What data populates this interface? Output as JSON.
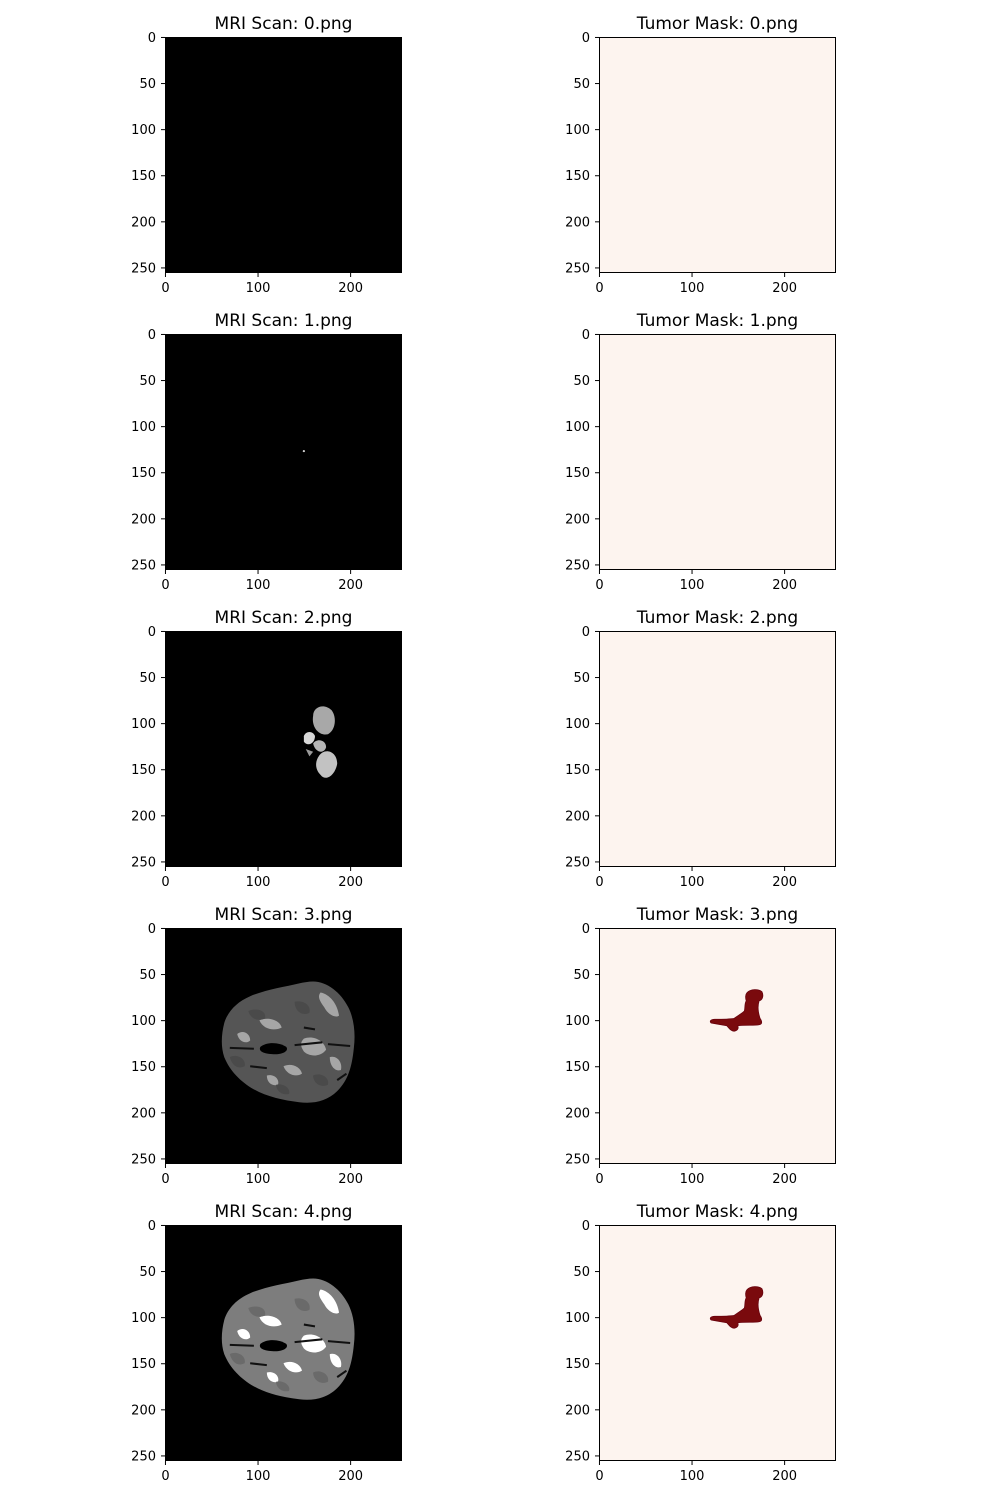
{
  "figure": {
    "background": "#ffffff"
  },
  "colors": {
    "mri_background": "#000000",
    "mask_background": "#fdf4ef",
    "tumor_fill": "#7a0a0d",
    "tumor_outline": "#67000d",
    "tissue_dark": "#555555",
    "tissue_mid": "#7d7d7d",
    "tissue_light": "#a6a6a6",
    "tissue_white": "#ffffff"
  },
  "chart_data": [
    {
      "type": "heatmap",
      "panel": "mri",
      "title": "MRI Scan: 0.png",
      "colormap": "gray",
      "content": "empty",
      "xlim": [
        0,
        255
      ],
      "ylim": [
        255,
        0
      ],
      "xticks": [
        0,
        100,
        200
      ],
      "yticks": [
        0,
        50,
        100,
        150,
        200,
        250
      ]
    },
    {
      "type": "heatmap",
      "panel": "mask",
      "title": "Tumor Mask: 0.png",
      "colormap": "Reds",
      "content": "empty",
      "xlim": [
        0,
        255
      ],
      "ylim": [
        255,
        0
      ],
      "xticks": [
        0,
        100,
        200
      ],
      "yticks": [
        0,
        50,
        100,
        150,
        200,
        250
      ]
    },
    {
      "type": "heatmap",
      "panel": "mri",
      "title": "MRI Scan: 1.png",
      "colormap": "gray",
      "content": "dot",
      "dot_at": [
        150,
        127
      ],
      "xlim": [
        0,
        255
      ],
      "ylim": [
        255,
        0
      ],
      "xticks": [
        0,
        100,
        200
      ],
      "yticks": [
        0,
        50,
        100,
        150,
        200,
        250
      ]
    },
    {
      "type": "heatmap",
      "panel": "mask",
      "title": "Tumor Mask: 1.png",
      "colormap": "Reds",
      "content": "empty",
      "xlim": [
        0,
        255
      ],
      "ylim": [
        255,
        0
      ],
      "xticks": [
        0,
        100,
        200
      ],
      "yticks": [
        0,
        50,
        100,
        150,
        200,
        250
      ]
    },
    {
      "type": "heatmap",
      "panel": "mri",
      "title": "MRI Scan: 2.png",
      "colormap": "gray",
      "content": "blobs",
      "xlim": [
        0,
        255
      ],
      "ylim": [
        255,
        0
      ],
      "xticks": [
        0,
        100,
        200
      ],
      "yticks": [
        0,
        50,
        100,
        150,
        200,
        250
      ]
    },
    {
      "type": "heatmap",
      "panel": "mask",
      "title": "Tumor Mask: 2.png",
      "colormap": "Reds",
      "content": "empty",
      "xlim": [
        0,
        255
      ],
      "ylim": [
        255,
        0
      ],
      "xticks": [
        0,
        100,
        200
      ],
      "yticks": [
        0,
        50,
        100,
        150,
        200,
        250
      ]
    },
    {
      "type": "heatmap",
      "panel": "mri",
      "title": "MRI Scan: 3.png",
      "colormap": "gray",
      "content": "brain_dim",
      "xlim": [
        0,
        255
      ],
      "ylim": [
        255,
        0
      ],
      "xticks": [
        0,
        100,
        200
      ],
      "yticks": [
        0,
        50,
        100,
        150,
        200,
        250
      ]
    },
    {
      "type": "heatmap",
      "panel": "mask",
      "title": "Tumor Mask: 3.png",
      "colormap": "Reds",
      "content": "tumor",
      "xlim": [
        0,
        255
      ],
      "ylim": [
        255,
        0
      ],
      "xticks": [
        0,
        100,
        200
      ],
      "yticks": [
        0,
        50,
        100,
        150,
        200,
        250
      ]
    },
    {
      "type": "heatmap",
      "panel": "mri",
      "title": "MRI Scan: 4.png",
      "colormap": "gray",
      "content": "brain_bright",
      "xlim": [
        0,
        255
      ],
      "ylim": [
        255,
        0
      ],
      "xticks": [
        0,
        100,
        200
      ],
      "yticks": [
        0,
        50,
        100,
        150,
        200,
        250
      ]
    },
    {
      "type": "heatmap",
      "panel": "mask",
      "title": "Tumor Mask: 4.png",
      "colormap": "Reds",
      "content": "tumor",
      "xlim": [
        0,
        255
      ],
      "ylim": [
        255,
        0
      ],
      "xticks": [
        0,
        100,
        200
      ],
      "yticks": [
        0,
        50,
        100,
        150,
        200,
        250
      ]
    }
  ]
}
